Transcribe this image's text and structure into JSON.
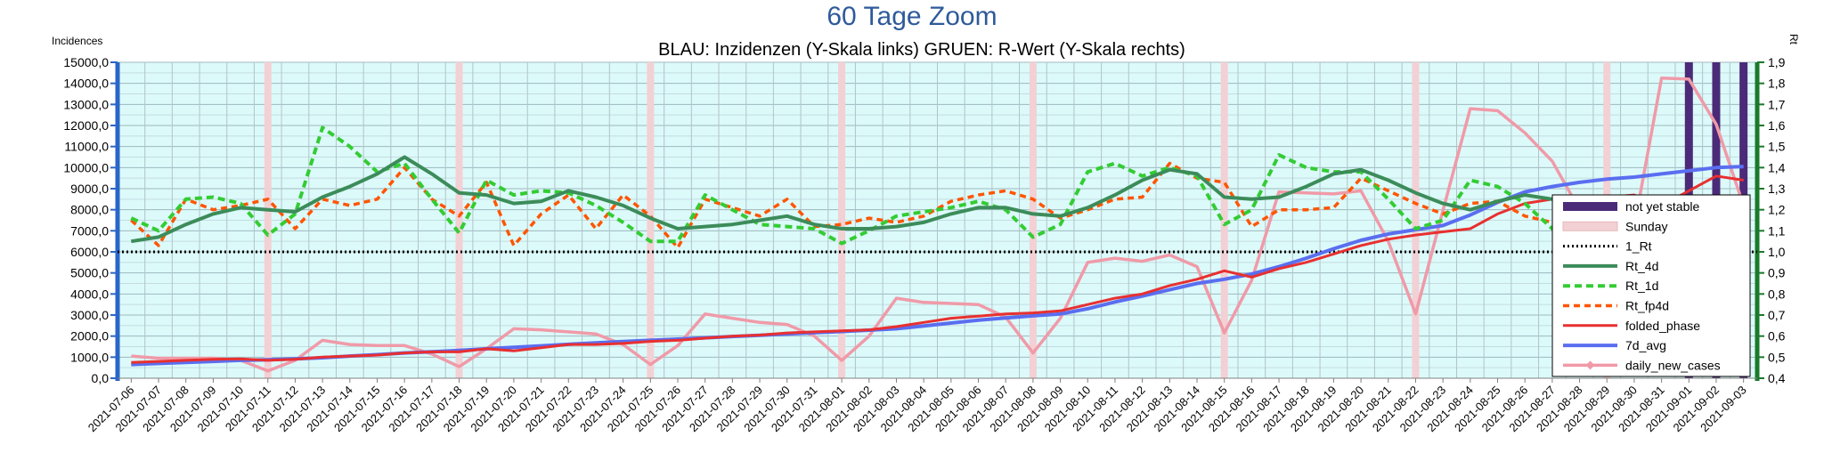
{
  "chart_data": {
    "type": "line",
    "title": "60 Tage Zoom",
    "subtitle": "BLAU: Inzidenzen (Y-Skala links)     GRUEN: R-Wert (Y-Skala rechts)",
    "ylabel_left": "Incidences",
    "ylabel_right": "Rt",
    "ylim_left": [
      0,
      15000
    ],
    "ylim_right": [
      0.4,
      1.9
    ],
    "yticks_left": [
      "0,0",
      "1000,0",
      "2000,0",
      "3000,0",
      "4000,0",
      "5000,0",
      "6000,0",
      "7000,0",
      "8000,0",
      "9000,0",
      "10000,0",
      "11000,0",
      "12000,0",
      "13000,0",
      "14000,0",
      "15000,0"
    ],
    "yticks_right": [
      "0,4",
      "0,5",
      "0,6",
      "0,7",
      "0,8",
      "0,9",
      "1,0",
      "1,1",
      "1,2",
      "1,3",
      "1,4",
      "1,5",
      "1,6",
      "1,7",
      "1,8",
      "1,9"
    ],
    "categories": [
      "2021-07-06",
      "2021-07-07",
      "2021-07-08",
      "2021-07-09",
      "2021-07-10",
      "2021-07-11",
      "2021-07-12",
      "2021-07-13",
      "2021-07-14",
      "2021-07-15",
      "2021-07-16",
      "2021-07-17",
      "2021-07-18",
      "2021-07-19",
      "2021-07-20",
      "2021-07-21",
      "2021-07-22",
      "2021-07-23",
      "2021-07-24",
      "2021-07-25",
      "2021-07-26",
      "2021-07-27",
      "2021-07-28",
      "2021-07-29",
      "2021-07-30",
      "2021-07-31",
      "2021-08-01",
      "2021-08-02",
      "2021-08-03",
      "2021-08-04",
      "2021-08-05",
      "2021-08-06",
      "2021-08-07",
      "2021-08-08",
      "2021-08-09",
      "2021-08-10",
      "2021-08-11",
      "2021-08-12",
      "2021-08-13",
      "2021-08-14",
      "2021-08-15",
      "2021-08-16",
      "2021-08-17",
      "2021-08-18",
      "2021-08-19",
      "2021-08-20",
      "2021-08-21",
      "2021-08-22",
      "2021-08-23",
      "2021-08-24",
      "2021-08-25",
      "2021-08-26",
      "2021-08-27",
      "2021-08-28",
      "2021-08-29",
      "2021-08-30",
      "2021-08-31",
      "2021-09-01",
      "2021-09-02",
      "2021-09-03"
    ],
    "sunday_indices": [
      5,
      12,
      19,
      26,
      33,
      40,
      47,
      54
    ],
    "not_yet_stable_indices": [
      57,
      58,
      59
    ],
    "one_rt": 1.0,
    "series": [
      {
        "name": "Rt_4d",
        "axis": "right",
        "color": "#3c8c5a",
        "values": [
          1.05,
          1.07,
          1.13,
          1.18,
          1.21,
          1.2,
          1.19,
          1.26,
          1.31,
          1.37,
          1.45,
          1.37,
          1.28,
          1.27,
          1.23,
          1.24,
          1.29,
          1.26,
          1.22,
          1.16,
          1.11,
          1.12,
          1.13,
          1.15,
          1.17,
          1.13,
          1.11,
          1.11,
          1.12,
          1.14,
          1.18,
          1.21,
          1.21,
          1.18,
          1.17,
          1.21,
          1.27,
          1.34,
          1.39,
          1.37,
          1.26,
          1.25,
          1.26,
          1.31,
          1.37,
          1.39,
          1.34,
          1.28,
          1.23,
          1.2,
          1.24,
          1.27,
          1.25,
          1.18,
          1.11,
          1.07,
          1.06,
          1.07,
          1.05,
          1.02
        ]
      },
      {
        "name": "Rt_1d",
        "axis": "right",
        "color": "#33cc33",
        "values": [
          1.16,
          1.1,
          1.25,
          1.26,
          1.23,
          1.08,
          1.18,
          1.59,
          1.5,
          1.38,
          1.42,
          1.25,
          1.09,
          1.34,
          1.27,
          1.29,
          1.28,
          1.22,
          1.14,
          1.05,
          1.05,
          1.27,
          1.2,
          1.13,
          1.12,
          1.11,
          1.04,
          1.1,
          1.17,
          1.19,
          1.21,
          1.24,
          1.2,
          1.07,
          1.13,
          1.38,
          1.42,
          1.36,
          1.4,
          1.36,
          1.13,
          1.2,
          1.46,
          1.4,
          1.38,
          1.38,
          1.25,
          1.11,
          1.15,
          1.34,
          1.31,
          1.23,
          1.11,
          1.1,
          1.04,
          1.03,
          1.07,
          1.08,
          1.02,
          0.88
        ]
      },
      {
        "name": "Rt_fp4d",
        "axis": "right",
        "color": "#ff5500",
        "values": [
          1.15,
          1.03,
          1.25,
          1.2,
          1.22,
          1.25,
          1.11,
          1.25,
          1.22,
          1.25,
          1.4,
          1.25,
          1.17,
          1.33,
          1.03,
          1.18,
          1.27,
          1.11,
          1.27,
          1.17,
          1.02,
          1.25,
          1.21,
          1.17,
          1.25,
          1.12,
          1.13,
          1.16,
          1.14,
          1.17,
          1.24,
          1.27,
          1.29,
          1.25,
          1.16,
          1.2,
          1.25,
          1.26,
          1.42,
          1.35,
          1.33,
          1.12,
          1.2,
          1.2,
          1.21,
          1.35,
          1.29,
          1.23,
          1.18,
          1.23,
          1.24,
          1.17,
          1.14,
          1.12,
          1.04,
          0.97,
          1.12,
          1.1,
          1.07,
          1.04
        ]
      },
      {
        "name": "folded_phase",
        "axis": "left",
        "color": "#e83030",
        "values": [
          750,
          800,
          850,
          900,
          920,
          850,
          900,
          1000,
          1050,
          1100,
          1200,
          1250,
          1250,
          1400,
          1300,
          1450,
          1600,
          1600,
          1650,
          1750,
          1800,
          1900,
          2000,
          2050,
          2150,
          2200,
          2250,
          2300,
          2450,
          2650,
          2850,
          2950,
          3050,
          3100,
          3200,
          3500,
          3800,
          4000,
          4400,
          4700,
          5100,
          4800,
          5200,
          5500,
          5900,
          6300,
          6600,
          6800,
          6950,
          7100,
          7800,
          8300,
          8500,
          8100,
          8600,
          8700,
          8200,
          8900,
          9600,
          9400
        ]
      },
      {
        "name": "7d_avg",
        "axis": "left",
        "color": "#5a6ef0",
        "values": [
          650,
          700,
          750,
          800,
          850,
          880,
          920,
          970,
          1050,
          1120,
          1200,
          1260,
          1320,
          1400,
          1470,
          1540,
          1610,
          1680,
          1740,
          1800,
          1860,
          1920,
          1980,
          2040,
          2100,
          2160,
          2220,
          2280,
          2350,
          2480,
          2620,
          2760,
          2860,
          2960,
          3050,
          3300,
          3620,
          3900,
          4200,
          4500,
          4700,
          4950,
          5300,
          5700,
          6150,
          6550,
          6850,
          7050,
          7250,
          7750,
          8350,
          8850,
          9100,
          9300,
          9450,
          9550,
          9700,
          9850,
          10000,
          10050
        ]
      },
      {
        "name": "daily_new_cases",
        "axis": "left",
        "color": "#f09aa8",
        "values": [
          1050,
          950,
          950,
          950,
          850,
          350,
          850,
          1800,
          1600,
          1550,
          1550,
          1150,
          550,
          1400,
          2350,
          2300,
          2200,
          2100,
          1600,
          650,
          1550,
          3050,
          2850,
          2650,
          2550,
          2000,
          850,
          2000,
          3800,
          3600,
          3550,
          3500,
          2900,
          1200,
          2850,
          5500,
          5700,
          5550,
          5850,
          5300,
          2150,
          4650,
          8850,
          8800,
          8750,
          8900,
          6500,
          3050,
          7950,
          12800,
          12700,
          11650,
          10300,
          8000,
          2800,
          7200,
          14250,
          14200,
          12050,
          8200
        ]
      }
    ],
    "legend": [
      "not yet stable",
      "Sunday",
      "1_Rt",
      "Rt_4d",
      "Rt_1d",
      "Rt_fp4d",
      "folded_phase",
      "7d_avg",
      "daily_new_cases"
    ],
    "legend_position": "right",
    "grid": true
  }
}
